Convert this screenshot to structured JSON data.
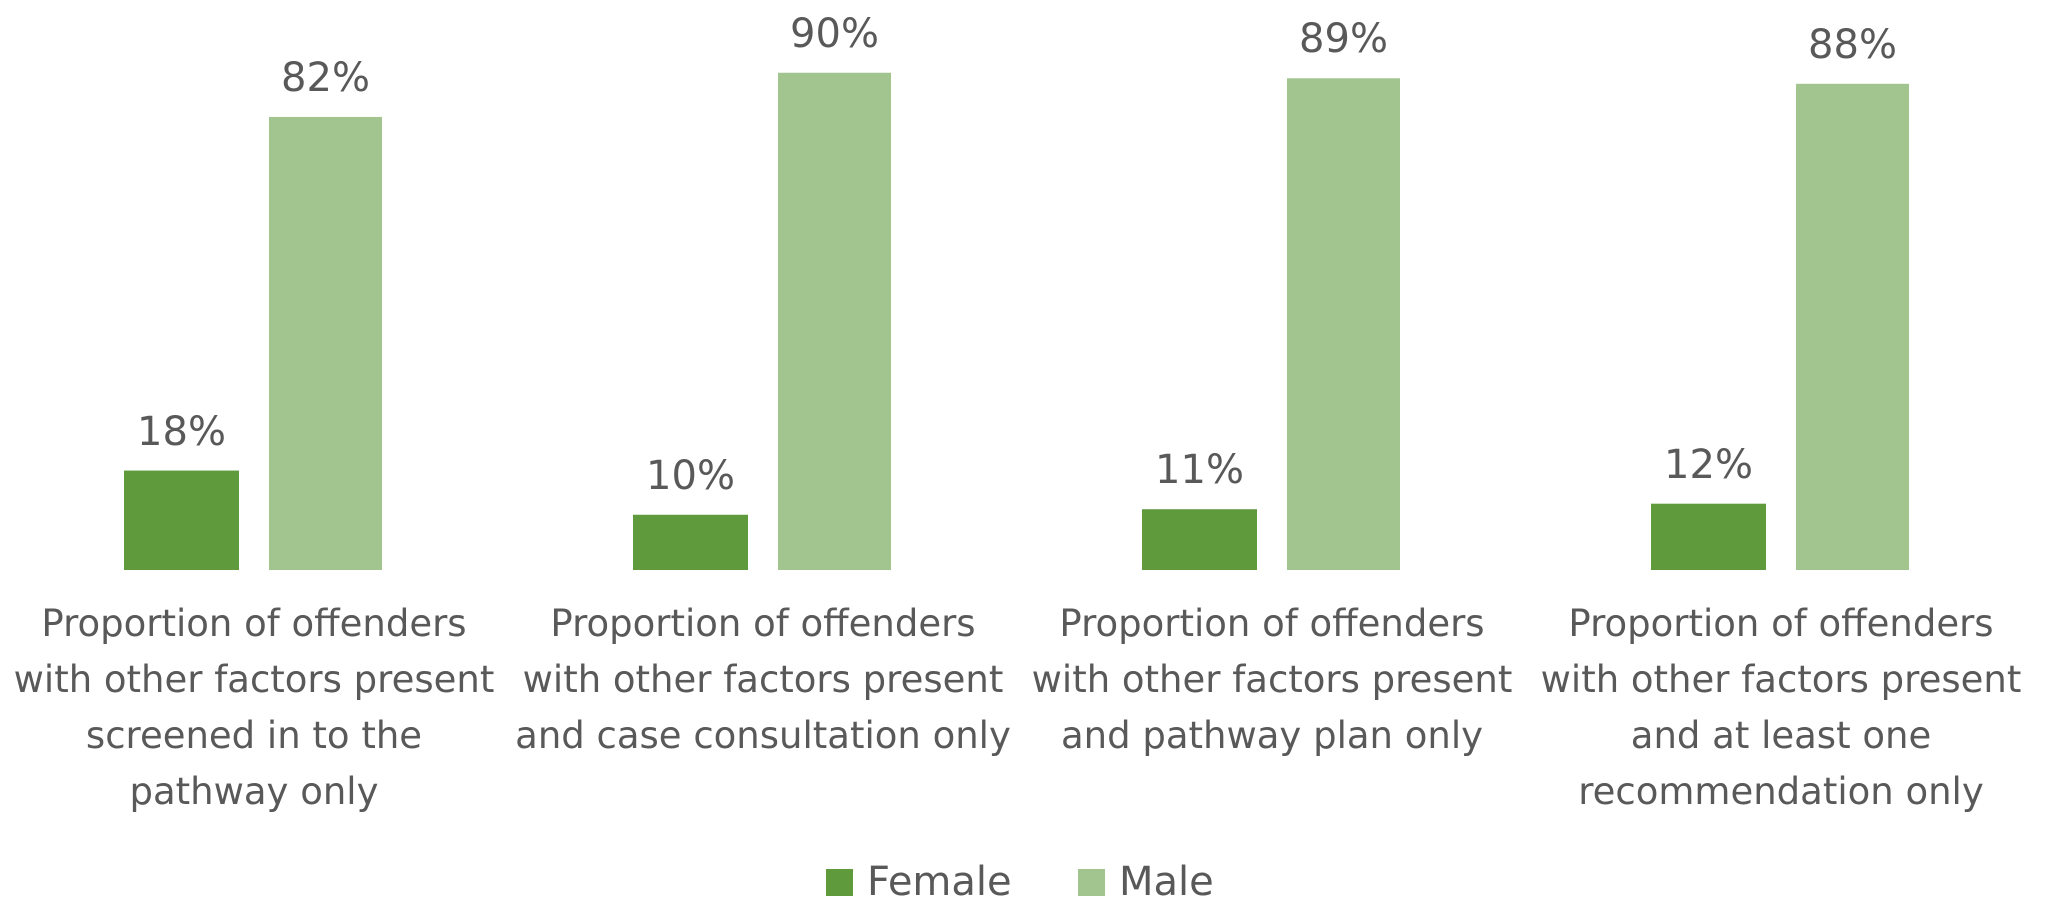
{
  "chart_data": {
    "type": "bar",
    "categories": [
      "Proportion of offenders with other factors present screened in to the pathway only",
      "Proportion of offenders with other factors present and case consultation only",
      "Proportion of offenders with other factors present and pathway plan only",
      "Proportion of offenders with other factors present and at least one recommendation only"
    ],
    "series": [
      {
        "name": "Female",
        "color": "#5f9a3c",
        "values": [
          18,
          10,
          11,
          12
        ],
        "value_labels": [
          "18%",
          "10%",
          "11%",
          "12%"
        ]
      },
      {
        "name": "Male",
        "color": "#a2c58f",
        "values": [
          82,
          90,
          89,
          88
        ],
        "value_labels": [
          "82%",
          "90%",
          "89%",
          "88%"
        ]
      }
    ],
    "legend": "bottom"
  }
}
